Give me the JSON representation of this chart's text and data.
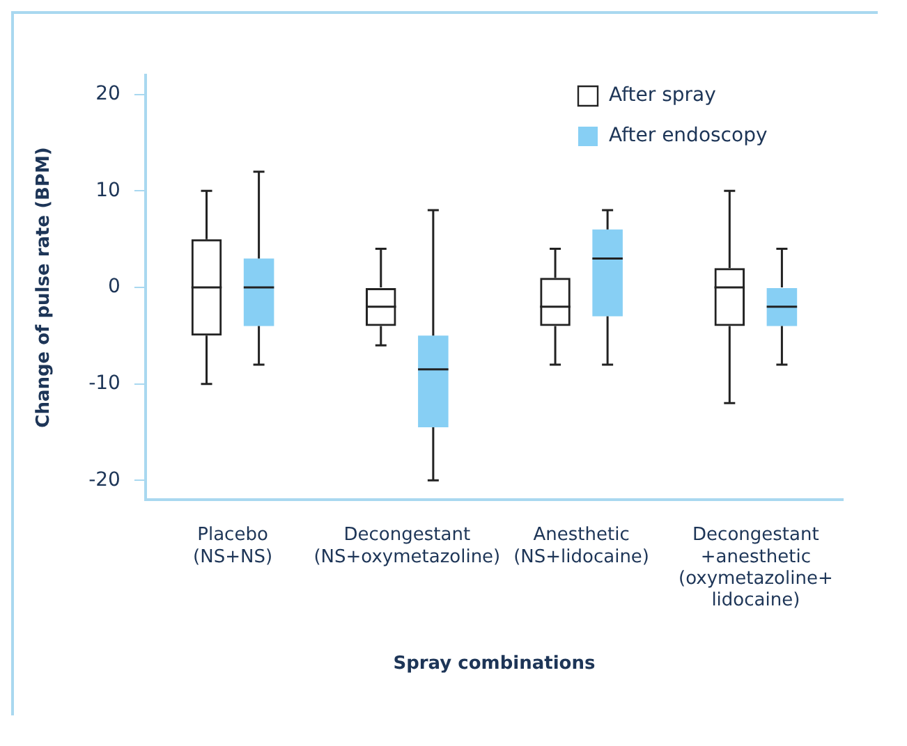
{
  "chart_data": {
    "type": "box",
    "xlabel": "Spray combinations",
    "ylabel": "Change of pulse rate (BPM)",
    "categories": [
      "Placebo\n(NS+NS)",
      "Decongestant\n(NS+oxymetazoline)",
      "Anesthetic\n(NS+lidocaine)",
      "Decongestant\n+anesthetic\n(oxymetazoline+\nlidocaine)"
    ],
    "ylim": [
      -22,
      22
    ],
    "yticks": [
      -20,
      -10,
      0,
      10,
      20
    ],
    "grid": false,
    "legend": "top right",
    "series": [
      {
        "name": "After spray",
        "color": "#222222",
        "boxes": [
          {
            "low": -10,
            "q1": -5,
            "median": 0,
            "q3": 5,
            "high": 10
          },
          {
            "low": -6,
            "q1": -4,
            "median": -2,
            "q3": 0,
            "high": 4
          },
          {
            "low": -8,
            "q1": -4,
            "median": -2,
            "q3": 1,
            "high": 4
          },
          {
            "low": -12,
            "q1": -4,
            "median": 0,
            "q3": 2,
            "high": 10
          }
        ]
      },
      {
        "name": "After endoscopy",
        "color": "#87cff4",
        "boxes": [
          {
            "low": -8,
            "q1": -4,
            "median": 0,
            "q3": 3,
            "high": 12
          },
          {
            "low": -20,
            "q1": -14.5,
            "median": -8.5,
            "q3": -5,
            "high": 8
          },
          {
            "low": -8,
            "q1": -3,
            "median": 3,
            "q3": 6,
            "high": 8
          },
          {
            "low": -8,
            "q1": -4,
            "median": -2,
            "q3": 0,
            "high": 4
          }
        ]
      }
    ]
  }
}
